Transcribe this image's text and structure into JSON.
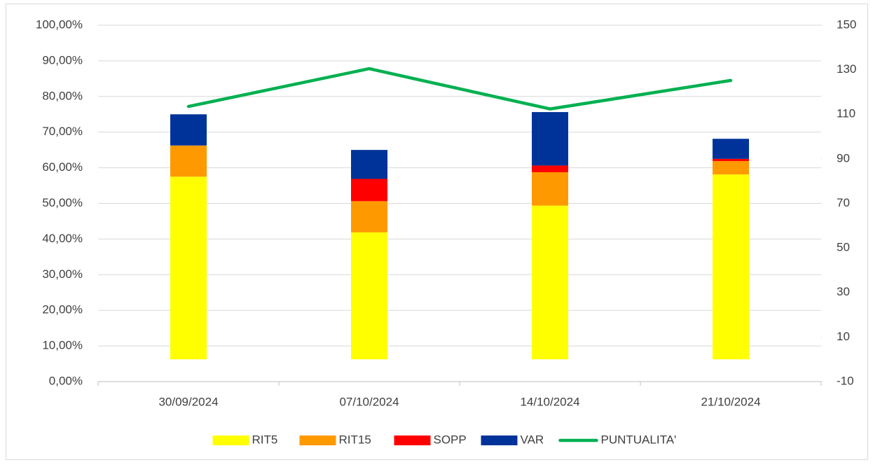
{
  "chart_data": {
    "type": "bar",
    "stacked": true,
    "categories": [
      "30/09/2024",
      "07/10/2024",
      "14/10/2024",
      "21/10/2024"
    ],
    "series": [
      {
        "name": "RIT5",
        "color": "#ffff00",
        "axis": "y2",
        "values": [
          82,
          57,
          69,
          83
        ]
      },
      {
        "name": "RIT15",
        "color": "#ff9900",
        "axis": "y2",
        "values": [
          14,
          14,
          15,
          6
        ]
      },
      {
        "name": "SOPP",
        "color": "#ff0000",
        "axis": "y2",
        "values": [
          0,
          10,
          3,
          1
        ]
      },
      {
        "name": "VAR",
        "color": "#003399",
        "axis": "y2",
        "values": [
          14,
          13,
          24,
          9
        ]
      },
      {
        "name": "PUNTUALITA'",
        "color": "#00b050",
        "type": "line",
        "values": [
          77.2,
          87.8,
          76.5,
          84.5
        ]
      }
    ],
    "ylim": [
      0,
      100
    ],
    "yticks": [
      {
        "value": 0,
        "label": "0,00%"
      },
      {
        "value": 10,
        "label": "10,00%"
      },
      {
        "value": 20,
        "label": "20,00%"
      },
      {
        "value": 30,
        "label": "30,00%"
      },
      {
        "value": 40,
        "label": "40,00%"
      },
      {
        "value": 50,
        "label": "50,00%"
      },
      {
        "value": 60,
        "label": "60,00%"
      },
      {
        "value": 70,
        "label": "70,00%"
      },
      {
        "value": 80,
        "label": "80,00%"
      },
      {
        "value": 90,
        "label": "90,00%"
      },
      {
        "value": 100,
        "label": "100,00%"
      }
    ],
    "y2lim": [
      -10,
      150
    ],
    "y2ticks": [
      -10,
      10,
      30,
      50,
      70,
      90,
      110,
      130,
      150
    ],
    "grid": true,
    "legend": "bottom"
  }
}
